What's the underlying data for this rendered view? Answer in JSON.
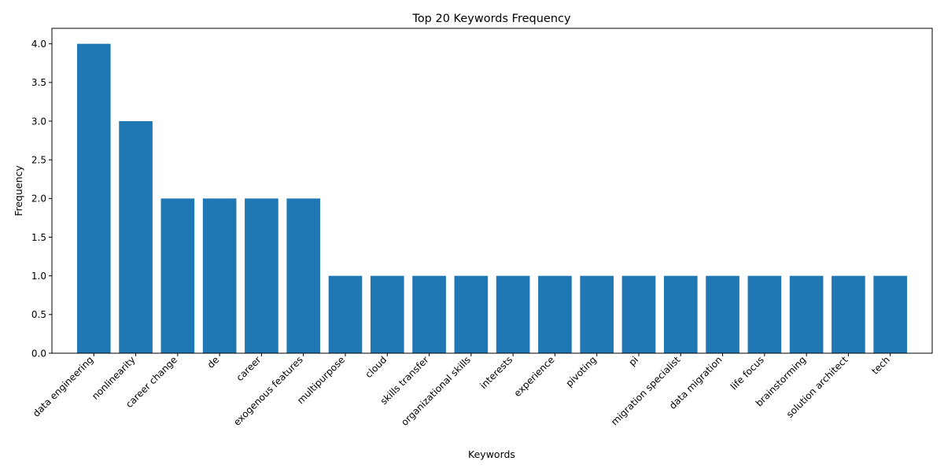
{
  "chart_data": {
    "type": "bar",
    "title": "Top 20 Keywords Frequency",
    "xlabel": "Keywords",
    "ylabel": "Frequency",
    "ylim": [
      0,
      4.2
    ],
    "yticks": [
      "0.0",
      "0.5",
      "1.0",
      "1.5",
      "2.0",
      "2.5",
      "3.0",
      "3.5",
      "4.0"
    ],
    "grid": false,
    "bar_color": "#1f77b4",
    "categories": [
      "data engineering",
      "nonlinearity",
      "career change",
      "de",
      "career",
      "exogenous features",
      "multipurpose",
      "cloud",
      "skills transfer",
      "organizational skills",
      "interests",
      "experience",
      "pivoting",
      "pi",
      "migration specialist",
      "data migration",
      "life focus",
      "brainstorming",
      "solution architect",
      "tech"
    ],
    "values": [
      4,
      3,
      2,
      2,
      2,
      2,
      1,
      1,
      1,
      1,
      1,
      1,
      1,
      1,
      1,
      1,
      1,
      1,
      1,
      1
    ]
  }
}
